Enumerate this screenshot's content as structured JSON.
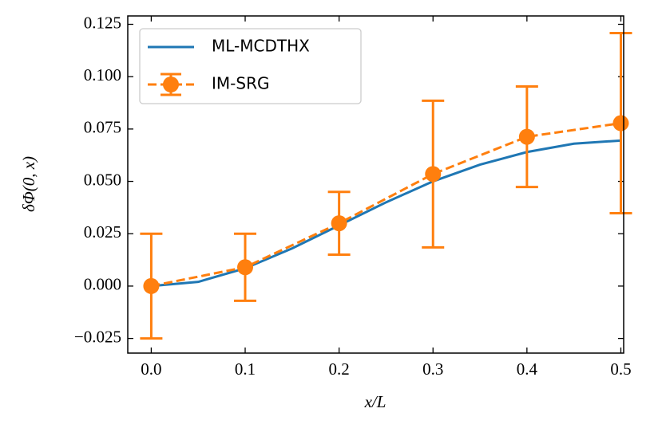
{
  "chart_data": {
    "type": "line",
    "xlabel": "x/L",
    "ylabel": "δΦ(0, x)",
    "xlim": [
      -0.025,
      0.503
    ],
    "ylim": [
      -0.032,
      0.129
    ],
    "xticks": [
      {
        "value": 0,
        "label": "0.0"
      },
      0.1,
      0.2,
      0.3,
      0.4,
      0.5
    ],
    "yticks": [
      {
        "value": -0.025,
        "label": "−0.025"
      },
      {
        "value": 0,
        "label": "0.000"
      },
      0.025,
      {
        "value": 0.05,
        "label": "0.050"
      },
      0.075,
      {
        "value": 0.1,
        "label": "0.100"
      },
      0.125
    ],
    "legend": "upper left",
    "series": [
      {
        "name": "ML-MCDTHX",
        "color": "#1f77b4",
        "style": "solid",
        "x": [
          0,
          0.05,
          0.1,
          0.15,
          0.2,
          0.25,
          0.3,
          0.35,
          0.4,
          0.45,
          0.5
        ],
        "values": [
          0,
          0.002,
          0.0085,
          0.018,
          0.029,
          0.04,
          0.05,
          0.058,
          0.064,
          0.068,
          0.0695
        ]
      },
      {
        "name": "IM-SRG",
        "color": "#ff7f0e",
        "style": "dashed",
        "markers": true,
        "x": [
          0,
          0.1,
          0.2,
          0.3,
          0.4,
          0.5
        ],
        "values": [
          0,
          0.009,
          0.03,
          0.0535,
          0.0713,
          0.0778
        ],
        "errors": [
          0.025,
          0.016,
          0.015,
          0.035,
          0.024,
          0.043
        ]
      }
    ]
  }
}
